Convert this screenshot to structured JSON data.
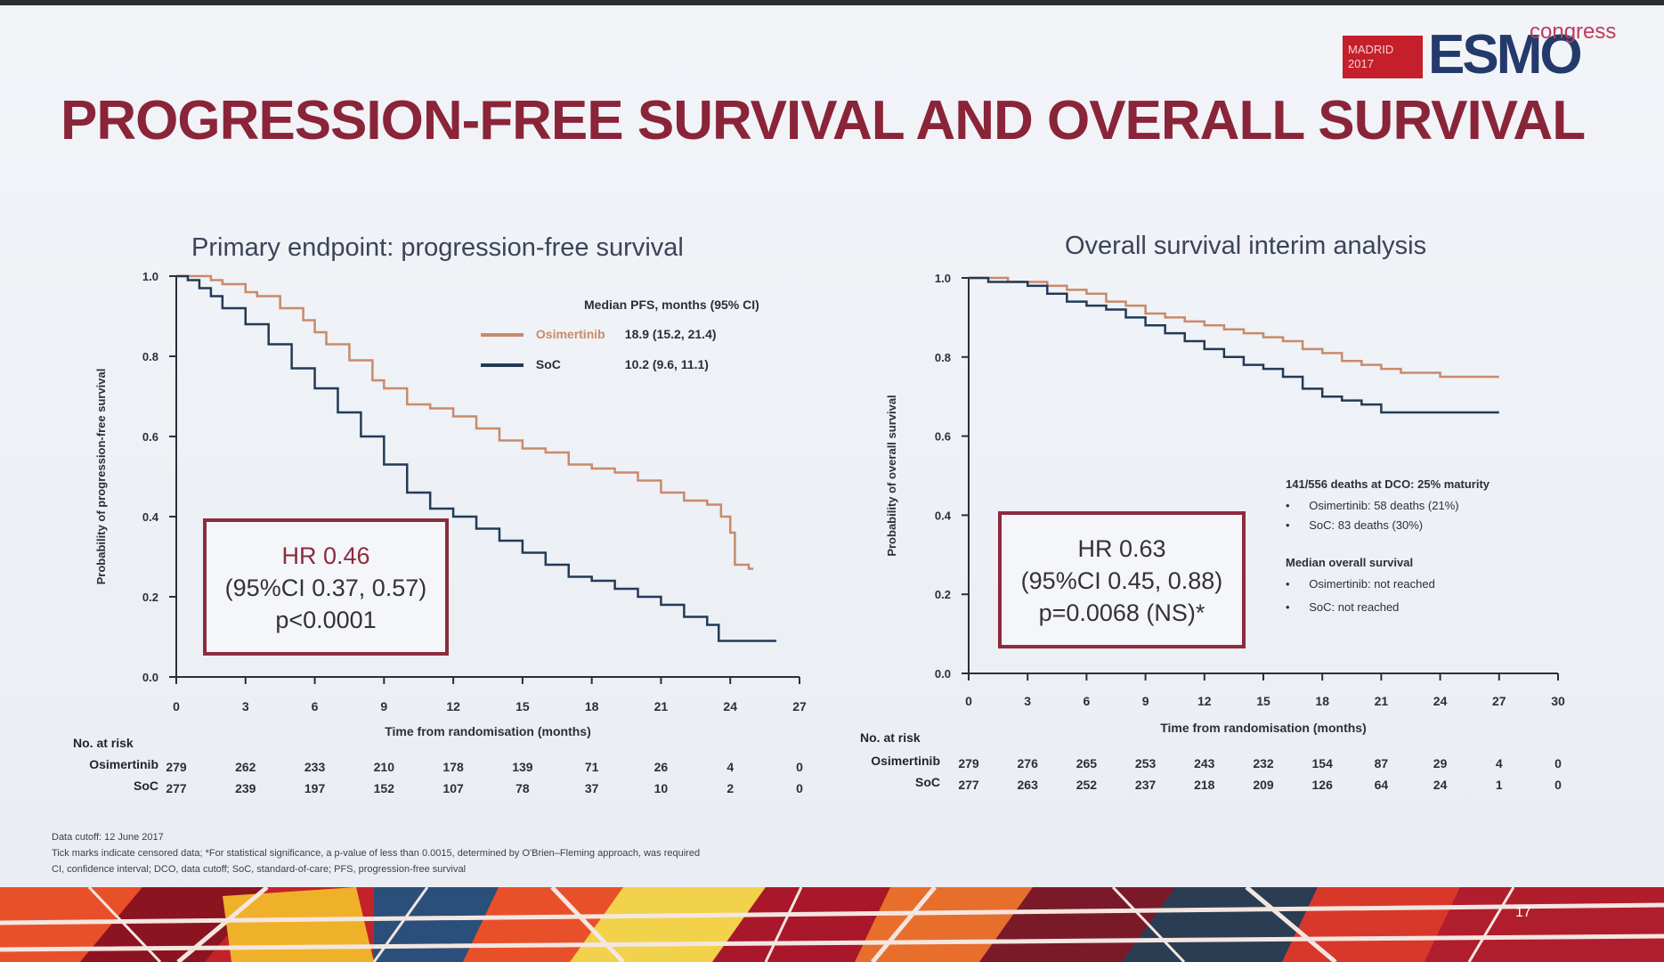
{
  "slide": {
    "title": "PROGRESSION-FREE SURVIVAL AND OVERALL SURVIVAL",
    "logo": {
      "city": "MADRID",
      "year": "2017",
      "brand": "ESMO",
      "suffix": "congress"
    },
    "page_number": "17",
    "footnotes": [
      "Data cutoff: 12 June 2017",
      "Tick marks indicate censored data; *For statistical significance, a p-value of less than 0.0015, determined by O'Brien–Fleming approach, was required",
      "CI, confidence interval; DCO, data cutoff; SoC, standard-of-care; PFS, progression-free survival"
    ],
    "colors": {
      "title": "#8a2438",
      "osimertinib": "#c98a6a",
      "soc": "#223a57",
      "box": "#8c2b3e"
    }
  },
  "chart_data": [
    {
      "type": "line",
      "title": "Primary endpoint: progression-free survival",
      "xlabel": "Time from randomisation (months)",
      "ylabel": "Probability of progression-free survival",
      "xlim": [
        0,
        27
      ],
      "ylim": [
        0,
        1.0
      ],
      "xticks": [
        0,
        3,
        6,
        9,
        12,
        15,
        18,
        21,
        24,
        27
      ],
      "yticks": [
        "0.0",
        "0.2",
        "0.4",
        "0.6",
        "0.8",
        "1.0"
      ],
      "legend_title": "Median PFS, months (95% CI)",
      "series": [
        {
          "name": "Osimertinib",
          "median": "18.9 (15.2, 21.4)",
          "x": [
            0,
            0.8,
            1.5,
            2.0,
            3.0,
            3.5,
            4.5,
            5.5,
            6.0,
            6.5,
            7.5,
            8.5,
            9.0,
            10.0,
            11.0,
            12.0,
            13.0,
            14.0,
            15.0,
            16.0,
            17.0,
            18.0,
            19.0,
            20.0,
            21.0,
            22.0,
            23.0,
            23.6,
            24.0,
            24.2,
            24.8,
            25.0
          ],
          "y": [
            1.0,
            1.0,
            0.99,
            0.98,
            0.96,
            0.95,
            0.92,
            0.89,
            0.86,
            0.83,
            0.79,
            0.74,
            0.72,
            0.68,
            0.67,
            0.65,
            0.62,
            0.59,
            0.57,
            0.56,
            0.53,
            0.52,
            0.51,
            0.49,
            0.46,
            0.44,
            0.43,
            0.4,
            0.36,
            0.28,
            0.27,
            0.27
          ]
        },
        {
          "name": "SoC",
          "median": "10.2 (9.6, 11.1)",
          "x": [
            0,
            0.5,
            1.0,
            1.5,
            2.0,
            3.0,
            4.0,
            5.0,
            6.0,
            7.0,
            8.0,
            9.0,
            10.0,
            11.0,
            12.0,
            13.0,
            14.0,
            15.0,
            16.0,
            17.0,
            18.0,
            19.0,
            20.0,
            21.0,
            22.0,
            23.0,
            23.5,
            24.0,
            25.0,
            26.0
          ],
          "y": [
            1.0,
            0.99,
            0.97,
            0.95,
            0.92,
            0.88,
            0.83,
            0.77,
            0.72,
            0.66,
            0.6,
            0.53,
            0.46,
            0.42,
            0.4,
            0.37,
            0.34,
            0.31,
            0.28,
            0.25,
            0.24,
            0.22,
            0.2,
            0.18,
            0.15,
            0.13,
            0.09,
            0.09,
            0.09,
            0.09
          ]
        }
      ],
      "annotation": {
        "hr": "HR 0.46",
        "ci": "(95%CI 0.37, 0.57)",
        "p": "p<0.0001"
      },
      "risk_table": {
        "header": "No. at risk",
        "rows": [
          {
            "label": "Osimertinib",
            "values": [
              "279",
              "262",
              "233",
              "210",
              "178",
              "139",
              "71",
              "26",
              "4",
              "0"
            ]
          },
          {
            "label": "SoC",
            "values": [
              "277",
              "239",
              "197",
              "152",
              "107",
              "78",
              "37",
              "10",
              "2",
              "0"
            ]
          }
        ]
      }
    },
    {
      "type": "line",
      "title": "Overall survival interim analysis",
      "xlabel": "Time from randomisation (months)",
      "ylabel": "Probability of overall survival",
      "xlim": [
        0,
        30
      ],
      "ylim": [
        0,
        1.0
      ],
      "xticks": [
        0,
        3,
        6,
        9,
        12,
        15,
        18,
        21,
        24,
        27,
        30
      ],
      "yticks": [
        "0.0",
        "0.2",
        "0.4",
        "0.6",
        "0.8",
        "1.0"
      ],
      "legend": {
        "heading": "141/556 deaths at DCO: 25% maturity",
        "items": [
          "Osimertinib: 58 deaths (21%)",
          "SoC: 83 deaths (30%)"
        ],
        "median_heading": "Median overall survival",
        "median_items": [
          "Osimertinib: not reached",
          "SoC: not reached"
        ]
      },
      "series": [
        {
          "name": "Osimertinib",
          "x": [
            0,
            1,
            2,
            3,
            4,
            5,
            6,
            7,
            8,
            9,
            10,
            11,
            12,
            13,
            14,
            15,
            16,
            17,
            18,
            19,
            20,
            21,
            22,
            23,
            24,
            25,
            26,
            27
          ],
          "y": [
            1.0,
            1.0,
            0.99,
            0.99,
            0.98,
            0.97,
            0.96,
            0.94,
            0.93,
            0.91,
            0.9,
            0.89,
            0.88,
            0.87,
            0.86,
            0.85,
            0.84,
            0.82,
            0.81,
            0.79,
            0.78,
            0.77,
            0.76,
            0.76,
            0.75,
            0.75,
            0.75,
            0.75
          ]
        },
        {
          "name": "SoC",
          "x": [
            0,
            1,
            2,
            3,
            4,
            5,
            6,
            7,
            8,
            9,
            10,
            11,
            12,
            13,
            14,
            15,
            16,
            17,
            18,
            19,
            20,
            21,
            22,
            23,
            24,
            25,
            26,
            27
          ],
          "y": [
            1.0,
            0.99,
            0.99,
            0.98,
            0.96,
            0.94,
            0.93,
            0.92,
            0.9,
            0.88,
            0.86,
            0.84,
            0.82,
            0.8,
            0.78,
            0.77,
            0.75,
            0.72,
            0.7,
            0.69,
            0.68,
            0.66,
            0.66,
            0.66,
            0.66,
            0.66,
            0.66,
            0.66
          ]
        }
      ],
      "annotation": {
        "hr": "HR 0.63",
        "ci": "(95%CI 0.45, 0.88)",
        "p": "p=0.0068 (NS)*"
      },
      "risk_table": {
        "header": "No. at risk",
        "rows": [
          {
            "label": "Osimertinib",
            "values": [
              "279",
              "276",
              "265",
              "253",
              "243",
              "232",
              "154",
              "87",
              "29",
              "4",
              "0"
            ]
          },
          {
            "label": "SoC",
            "values": [
              "277",
              "263",
              "252",
              "237",
              "218",
              "209",
              "126",
              "64",
              "24",
              "1",
              "0"
            ]
          }
        ]
      }
    }
  ]
}
